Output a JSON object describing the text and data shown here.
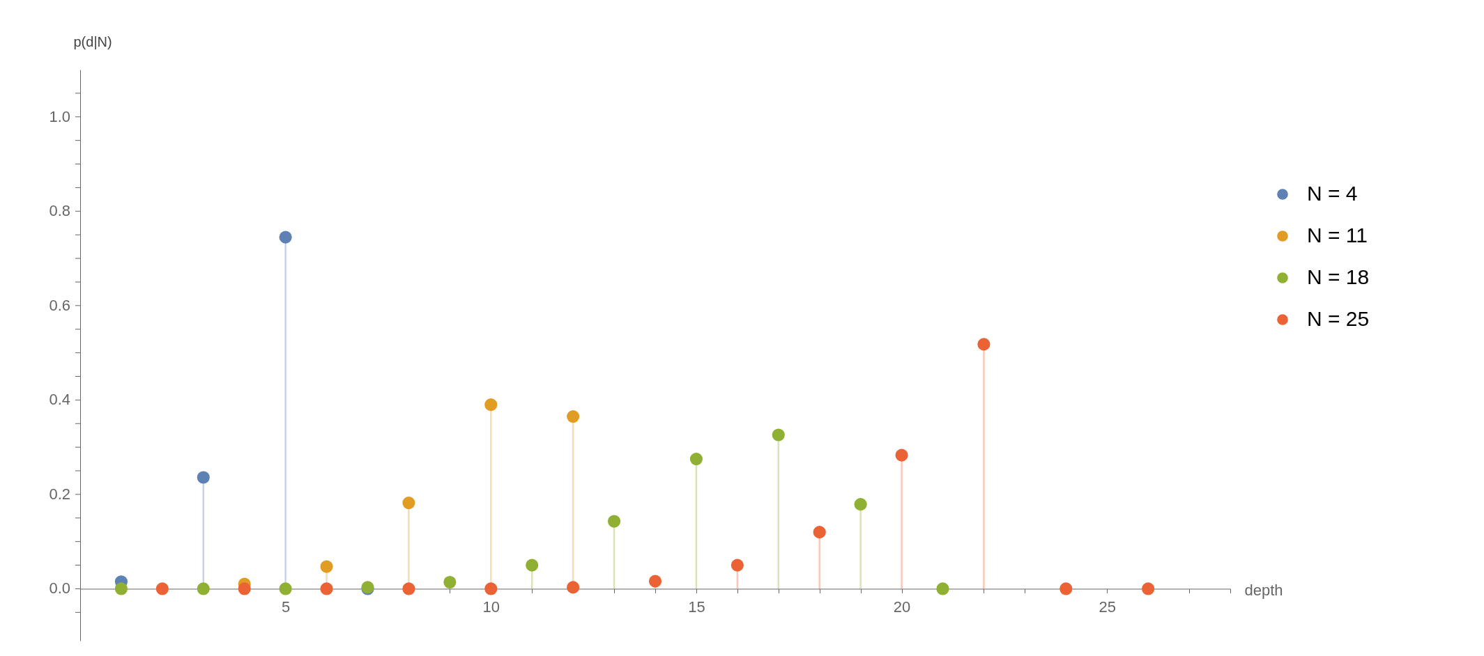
{
  "chart_data": {
    "type": "lollipop",
    "xlabel": "depth",
    "ylabel": "p(d|N)",
    "xlim": [
      0,
      28
    ],
    "ylim": [
      -0.11,
      1.1
    ],
    "xticks": [
      {
        "value": 1,
        "label": null
      },
      {
        "value": 2,
        "label": null
      },
      {
        "value": 3,
        "label": null
      },
      {
        "value": 4,
        "label": null
      },
      5,
      {
        "value": 6,
        "label": null
      },
      {
        "value": 7,
        "label": null
      },
      {
        "value": 8,
        "label": null
      },
      {
        "value": 9,
        "label": null
      },
      10,
      {
        "value": 11,
        "label": null
      },
      {
        "value": 12,
        "label": null
      },
      {
        "value": 13,
        "label": null
      },
      {
        "value": 14,
        "label": null
      },
      15,
      {
        "value": 16,
        "label": null
      },
      {
        "value": 17,
        "label": null
      },
      {
        "value": 18,
        "label": null
      },
      {
        "value": 19,
        "label": null
      },
      20,
      {
        "value": 21,
        "label": null
      },
      {
        "value": 22,
        "label": null
      },
      {
        "value": 23,
        "label": null
      },
      {
        "value": 24,
        "label": null
      },
      25,
      {
        "value": 26,
        "label": null
      },
      {
        "value": 27,
        "label": null
      },
      {
        "value": 28,
        "label": null
      }
    ],
    "yticks": [
      {
        "value": -0.05,
        "label": null
      },
      {
        "value": 0,
        "label": "0.0"
      },
      {
        "value": 0.05,
        "label": null
      },
      {
        "value": 0.1,
        "label": null
      },
      {
        "value": 0.15,
        "label": null
      },
      0.2,
      {
        "value": 0.25,
        "label": null
      },
      {
        "value": 0.3,
        "label": null
      },
      {
        "value": 0.35,
        "label": null
      },
      0.4,
      {
        "value": 0.45,
        "label": null
      },
      {
        "value": 0.5,
        "label": null
      },
      {
        "value": 0.55,
        "label": null
      },
      0.6,
      {
        "value": 0.65,
        "label": null
      },
      {
        "value": 0.7,
        "label": null
      },
      {
        "value": 0.75,
        "label": null
      },
      0.8,
      {
        "value": 0.85,
        "label": null
      },
      {
        "value": 0.9,
        "label": null
      },
      {
        "value": 0.95,
        "label": null
      },
      {
        "value": 1,
        "label": "1.0"
      },
      {
        "value": 1.05,
        "label": null
      }
    ],
    "grid": false,
    "legend": "right",
    "marker": "circle",
    "series": [
      {
        "name": "N = 4",
        "color": "#5e81b5",
        "x": [
          1,
          3,
          5,
          7
        ],
        "values": [
          0.015,
          0.236,
          0.745,
          0
        ]
      },
      {
        "name": "N = 11",
        "color": "#e19c24",
        "x": [
          4,
          6,
          8,
          10,
          12
        ],
        "values": [
          0.01,
          0.047,
          0.182,
          0.39,
          0.365
        ]
      },
      {
        "name": "N = 18",
        "color": "#8fb032",
        "x": [
          1,
          3,
          5,
          7,
          9,
          11,
          13,
          15,
          17,
          19,
          21
        ],
        "values": [
          0,
          0,
          0,
          0.003,
          0.014,
          0.05,
          0.143,
          0.275,
          0.326,
          0.179,
          0
        ]
      },
      {
        "name": "N = 25",
        "color": "#eb6235",
        "x": [
          2,
          4,
          6,
          8,
          10,
          12,
          14,
          16,
          18,
          20,
          22,
          24,
          26
        ],
        "values": [
          0,
          0,
          0,
          0,
          0,
          0.003,
          0.016,
          0.05,
          0.12,
          0.283,
          0.518,
          0,
          0
        ]
      }
    ]
  }
}
